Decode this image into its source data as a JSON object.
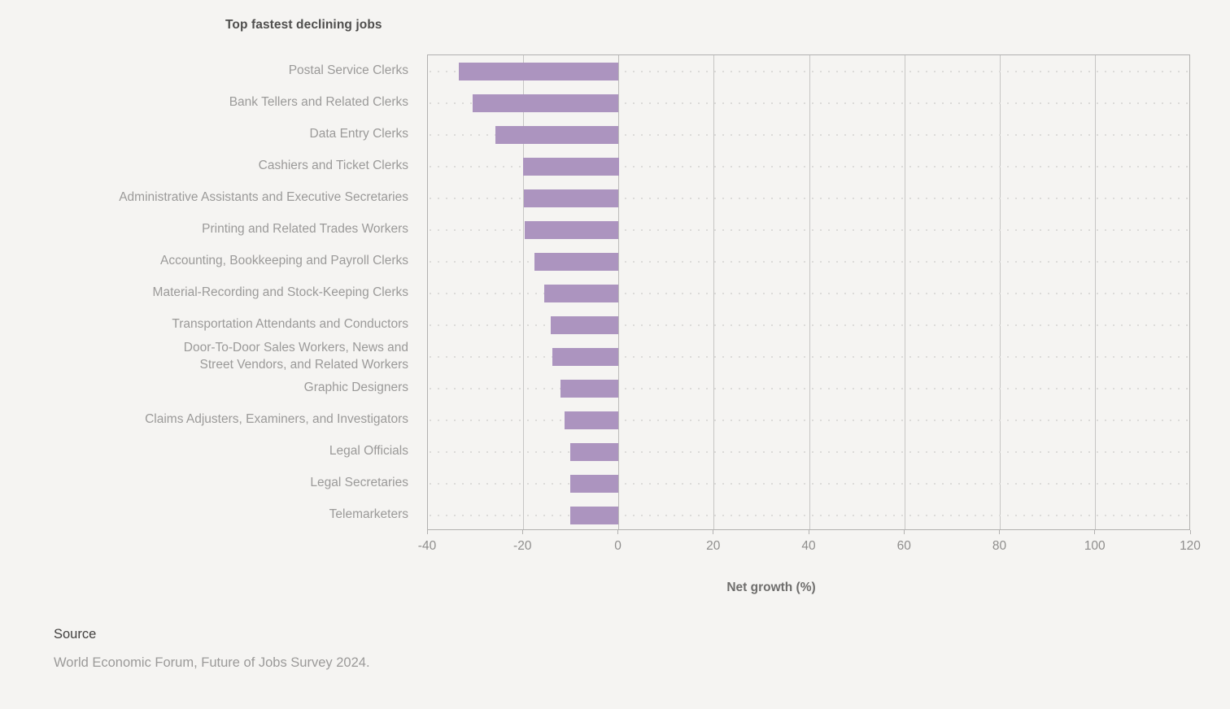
{
  "title": "Top fastest declining jobs",
  "chart_data": {
    "type": "bar",
    "orientation": "horizontal",
    "categories": [
      "Postal Service Clerks",
      "Bank Tellers and Related Clerks",
      "Data Entry Clerks",
      "Cashiers and Ticket Clerks",
      "Administrative Assistants and Executive Secretaries",
      "Printing and Related Trades Workers",
      "Accounting, Bookkeeping and Payroll Clerks",
      "Material-Recording and Stock-Keeping Clerks",
      "Transportation Attendants and Conductors",
      "Door-To-Door Sales Workers, News and\nStreet Vendors, and Related Workers",
      "Graphic Designers",
      "Claims Adjusters, Examiners, and Investigators",
      "Legal Officials",
      "Legal Secretaries",
      "Telemarketers"
    ],
    "values": [
      -33.5,
      -30.7,
      -25.9,
      -20,
      -19.9,
      -19.7,
      -17.7,
      -15.6,
      -14.3,
      -13.9,
      -12.2,
      -11.4,
      -10.2,
      -10.2,
      -10.1
    ],
    "xlabel": "Net growth (%)",
    "xlim": [
      -40,
      120
    ],
    "xticks": [
      -40,
      -20,
      0,
      20,
      40,
      60,
      80,
      100,
      120
    ],
    "grid": "solid vertical gridlines at every x tick; dotted horizontal guide per category row",
    "legend": "none",
    "bar_color": "#ac94bf",
    "background_color": "#f5f4f2"
  },
  "source": {
    "label": "Source",
    "text": "World Economic Forum, Future of Jobs Survey 2024."
  }
}
